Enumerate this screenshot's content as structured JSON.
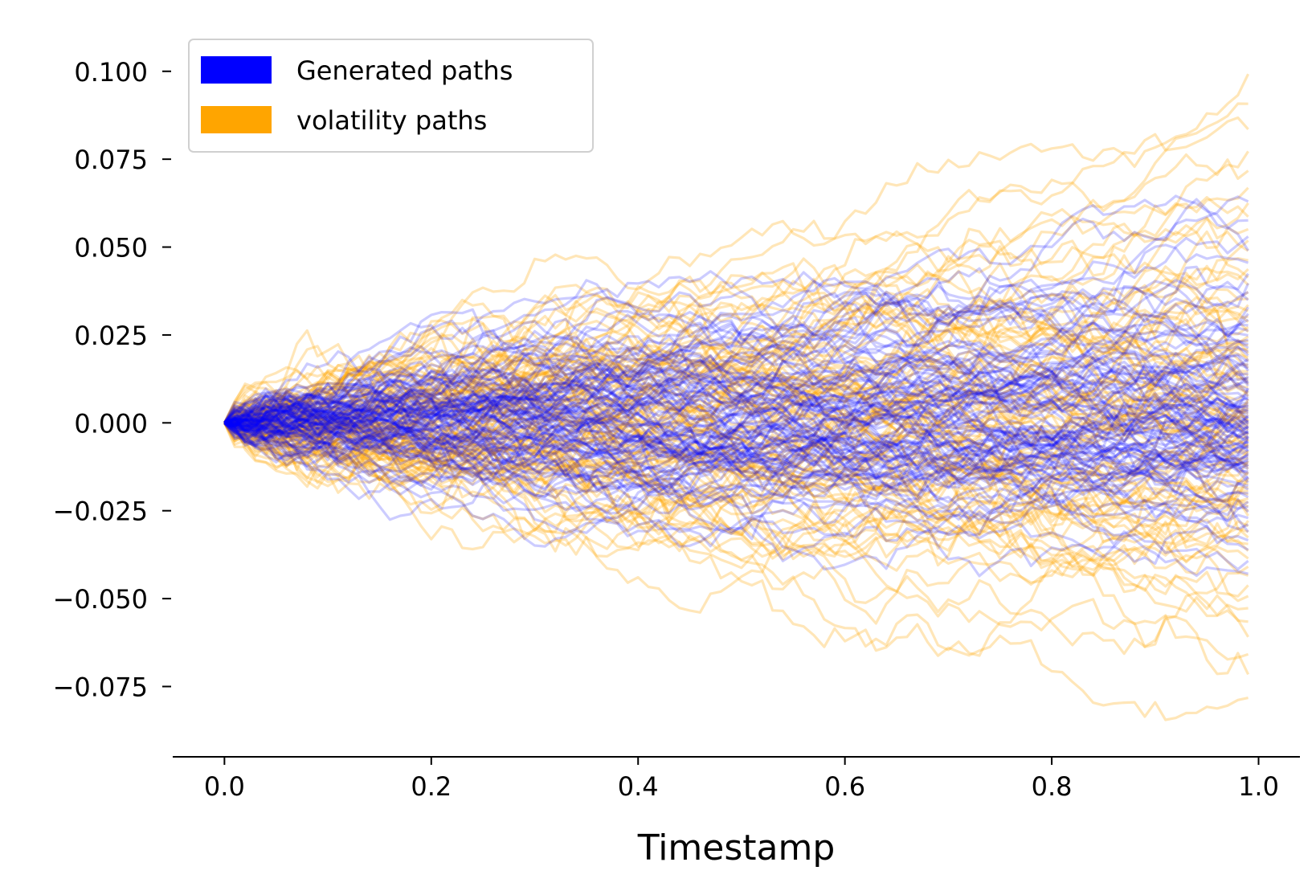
{
  "chart_data": {
    "type": "line",
    "title": "",
    "xlabel": "Timestamp",
    "ylabel": "",
    "xlim": [
      -0.05,
      1.04
    ],
    "ylim": [
      -0.095,
      0.11
    ],
    "x_start": 0.0,
    "x_end": 0.99,
    "x_ticks": [
      0.0,
      0.2,
      0.4,
      0.6,
      0.8,
      1.0
    ],
    "x_tick_labels": [
      "0.0",
      "0.2",
      "0.4",
      "0.6",
      "0.8",
      "1.0"
    ],
    "y_ticks": [
      0.1,
      0.075,
      0.05,
      0.025,
      0.0,
      -0.025,
      -0.05,
      -0.075
    ],
    "y_tick_labels": [
      "0.100",
      "0.075",
      "0.050",
      "0.025",
      "0.000",
      "−0.025",
      "−0.050",
      "−0.075"
    ],
    "grid": false,
    "legend_position": "top-left",
    "series": [
      {
        "name": "Generated paths",
        "color": "#0000ff",
        "opacity": 0.2,
        "path_count": 100,
        "endpoint_range": [
          -0.045,
          0.066
        ]
      },
      {
        "name": "volatility paths",
        "color": "#ffa500",
        "opacity": 0.28,
        "path_count": 100,
        "endpoint_range": [
          -0.082,
          0.104
        ]
      }
    ]
  }
}
